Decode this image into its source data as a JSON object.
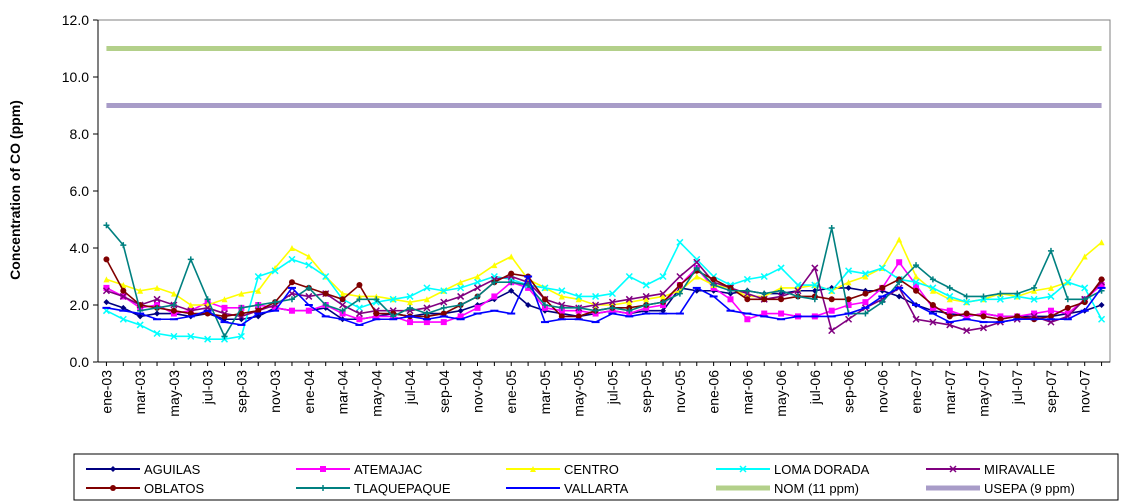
{
  "chart_data": {
    "type": "line",
    "title": "",
    "xlabel": "",
    "ylabel": "Concentration of CO (ppm)",
    "ylim": [
      0,
      12
    ],
    "yticks": [
      "0.0",
      "2.0",
      "4.0",
      "6.0",
      "8.0",
      "10.0",
      "12.0"
    ],
    "grid": false,
    "legend_position": "bottom",
    "x": [
      "ene-03",
      "feb-03",
      "mar-03",
      "abr-03",
      "may-03",
      "jun-03",
      "jul-03",
      "ago-03",
      "sep-03",
      "oct-03",
      "nov-03",
      "dic-03",
      "ene-04",
      "feb-04",
      "mar-04",
      "abr-04",
      "may-04",
      "jun-04",
      "jul-04",
      "ago-04",
      "sep-04",
      "oct-04",
      "nov-04",
      "dic-04",
      "ene-05",
      "feb-05",
      "mar-05",
      "abr-05",
      "may-05",
      "jun-05",
      "jul-05",
      "ago-05",
      "sep-05",
      "oct-05",
      "nov-05",
      "dic-05",
      "ene-06",
      "feb-06",
      "mar-06",
      "abr-06",
      "may-06",
      "jun-06",
      "jul-06",
      "ago-06",
      "sep-06",
      "oct-06",
      "nov-06",
      "dic-06",
      "ene-07",
      "feb-07",
      "mar-07",
      "abr-07",
      "may-07",
      "jun-07",
      "jul-07",
      "ago-07",
      "sep-07",
      "oct-07",
      "nov-07",
      "dic-07"
    ],
    "xtick_labels": [
      "ene-03",
      "mar-03",
      "may-03",
      "jul-03",
      "sep-03",
      "nov-03",
      "ene-04",
      "mar-04",
      "may-04",
      "jul-04",
      "sep-04",
      "nov-04",
      "ene-05",
      "mar-05",
      "may-05",
      "jul-05",
      "sep-05",
      "nov-05",
      "ene-06",
      "mar-06",
      "may-06",
      "jul-06",
      "sep-06",
      "nov-06",
      "ene-07",
      "mar-07",
      "may-07",
      "jul-07",
      "sep-07",
      "nov-07"
    ],
    "series": [
      {
        "name": "AGUILAS",
        "color": "#000080",
        "marker": "diamond",
        "values": [
          2.1,
          1.9,
          1.6,
          1.7,
          1.7,
          1.6,
          1.7,
          1.5,
          1.5,
          1.6,
          1.9,
          1.8,
          1.8,
          1.9,
          1.5,
          1.5,
          1.6,
          1.7,
          1.6,
          1.7,
          1.7,
          1.8,
          2.0,
          2.2,
          2.5,
          2.0,
          1.8,
          1.7,
          1.6,
          1.7,
          1.8,
          1.7,
          1.8,
          1.8,
          2.6,
          2.5,
          2.5,
          2.4,
          2.5,
          2.4,
          2.4,
          2.5,
          2.5,
          2.6,
          2.6,
          2.5,
          2.5,
          2.3,
          2.0,
          1.8,
          1.7,
          1.6,
          1.7,
          1.6,
          1.6,
          1.6,
          1.6,
          1.7,
          1.8,
          2.0
        ]
      },
      {
        "name": "ATEMAJAC",
        "color": "#ff00ff",
        "marker": "square",
        "values": [
          2.6,
          2.3,
          1.9,
          2.0,
          1.7,
          1.8,
          2.1,
          1.9,
          1.9,
          2.0,
          1.9,
          1.8,
          1.8,
          2.0,
          1.7,
          1.5,
          1.6,
          1.6,
          1.4,
          1.4,
          1.4,
          1.6,
          1.9,
          2.3,
          2.8,
          2.6,
          1.9,
          1.8,
          1.8,
          1.7,
          1.8,
          1.7,
          1.9,
          2.0,
          2.7,
          3.3,
          2.6,
          2.2,
          1.5,
          1.7,
          1.7,
          1.6,
          1.6,
          1.8,
          2.0,
          2.1,
          2.6,
          3.5,
          2.7,
          1.9,
          1.8,
          1.6,
          1.7,
          1.6,
          1.6,
          1.7,
          1.8,
          1.7,
          2.2,
          2.7
        ]
      },
      {
        "name": "CENTRO",
        "color": "#ffff00",
        "marker": "triangle",
        "values": [
          2.9,
          2.7,
          2.5,
          2.6,
          2.4,
          2.0,
          2.0,
          2.2,
          2.4,
          2.5,
          3.3,
          4.0,
          3.7,
          3.0,
          2.4,
          2.3,
          2.3,
          2.2,
          2.1,
          2.2,
          2.5,
          2.8,
          3.0,
          3.4,
          3.7,
          2.9,
          2.6,
          2.3,
          2.2,
          2.0,
          2.0,
          2.1,
          2.2,
          2.3,
          2.5,
          3.0,
          2.7,
          2.6,
          2.3,
          2.3,
          2.6,
          2.6,
          2.7,
          2.5,
          2.8,
          3.0,
          3.3,
          4.3,
          3.0,
          2.5,
          2.2,
          2.1,
          2.2,
          2.4,
          2.3,
          2.5,
          2.6,
          2.8,
          3.7,
          4.2
        ]
      },
      {
        "name": "LOMA DORADA",
        "color": "#00ffff",
        "marker": "x",
        "values": [
          1.8,
          1.5,
          1.3,
          1.0,
          0.9,
          0.9,
          0.8,
          0.8,
          0.9,
          3.0,
          3.2,
          3.6,
          3.4,
          3.0,
          2.2,
          1.9,
          2.1,
          2.2,
          2.3,
          2.6,
          2.5,
          2.6,
          2.8,
          3.0,
          2.9,
          2.7,
          2.6,
          2.5,
          2.3,
          2.3,
          2.4,
          3.0,
          2.7,
          3.0,
          4.2,
          3.6,
          3.0,
          2.7,
          2.9,
          3.0,
          3.3,
          2.7,
          2.7,
          2.5,
          3.2,
          3.1,
          3.3,
          2.9,
          2.8,
          2.6,
          2.3,
          2.1,
          2.2,
          2.2,
          2.3,
          2.2,
          2.3,
          2.8,
          2.6,
          1.5
        ]
      },
      {
        "name": "MIRAVALLE",
        "color": "#800080",
        "marker": "x",
        "values": [
          2.5,
          2.3,
          2.0,
          2.2,
          2.0,
          1.8,
          1.9,
          1.7,
          1.6,
          1.8,
          2.0,
          2.4,
          2.3,
          2.4,
          2.0,
          1.7,
          1.8,
          1.8,
          1.8,
          1.9,
          2.1,
          2.3,
          2.6,
          2.9,
          3.0,
          2.8,
          2.2,
          2.0,
          1.9,
          2.0,
          2.1,
          2.2,
          2.3,
          2.4,
          3.0,
          3.5,
          2.8,
          2.6,
          2.4,
          2.2,
          2.3,
          2.5,
          3.3,
          1.1,
          1.5,
          1.9,
          2.2,
          2.6,
          1.5,
          1.4,
          1.3,
          1.1,
          1.2,
          1.4,
          1.5,
          1.6,
          1.4,
          1.6,
          2.2,
          2.8
        ]
      },
      {
        "name": "OBLATOS",
        "color": "#800000",
        "marker": "circle",
        "values": [
          3.6,
          2.5,
          2.0,
          1.9,
          1.8,
          1.7,
          1.7,
          1.6,
          1.7,
          1.8,
          2.1,
          2.8,
          2.6,
          2.4,
          2.2,
          2.7,
          1.7,
          1.7,
          1.6,
          1.6,
          1.7,
          2.0,
          2.3,
          2.8,
          3.1,
          3.0,
          2.2,
          1.6,
          1.6,
          1.8,
          1.9,
          1.9,
          2.0,
          2.1,
          2.7,
          3.2,
          2.9,
          2.6,
          2.2,
          2.2,
          2.2,
          2.3,
          2.3,
          2.2,
          2.2,
          2.4,
          2.6,
          2.9,
          2.5,
          2.0,
          1.6,
          1.7,
          1.6,
          1.5,
          1.6,
          1.5,
          1.6,
          1.9,
          2.1,
          2.9
        ]
      },
      {
        "name": "TLAQUEPAQUE",
        "color": "#008080",
        "marker": "plus",
        "values": [
          4.8,
          4.1,
          1.8,
          1.9,
          2.0,
          3.6,
          2.2,
          0.9,
          1.9,
          2.0,
          2.1,
          2.2,
          2.6,
          2.0,
          1.8,
          2.2,
          2.2,
          1.6,
          1.9,
          1.7,
          1.9,
          2.0,
          2.3,
          2.8,
          2.8,
          2.7,
          2.0,
          1.9,
          1.9,
          1.8,
          1.9,
          1.8,
          2.0,
          2.1,
          2.4,
          3.3,
          2.7,
          2.5,
          2.5,
          2.4,
          2.5,
          2.3,
          2.2,
          4.7,
          1.7,
          1.7,
          2.1,
          2.8,
          3.4,
          2.9,
          2.6,
          2.3,
          2.3,
          2.4,
          2.4,
          2.6,
          3.9,
          2.2,
          2.2,
          2.5
        ]
      },
      {
        "name": "VALLARTA",
        "color": "#0000ff",
        "marker": "dash",
        "values": [
          1.9,
          1.8,
          1.7,
          1.5,
          1.5,
          1.6,
          1.8,
          1.4,
          1.3,
          1.7,
          1.8,
          2.6,
          2.0,
          1.6,
          1.5,
          1.3,
          1.5,
          1.5,
          1.6,
          1.5,
          1.6,
          1.5,
          1.7,
          1.8,
          1.7,
          3.0,
          1.4,
          1.5,
          1.5,
          1.4,
          1.7,
          1.6,
          1.7,
          1.7,
          1.7,
          2.6,
          2.3,
          1.8,
          1.7,
          1.6,
          1.5,
          1.6,
          1.6,
          1.6,
          1.7,
          1.9,
          2.3,
          2.6,
          2.0,
          1.7,
          1.4,
          1.5,
          1.4,
          1.4,
          1.5,
          1.5,
          1.5,
          1.5,
          1.8,
          2.6
        ]
      },
      {
        "name": "NOM (11 ppm)",
        "color": "#b3d08a",
        "marker": "none",
        "constant": 11
      },
      {
        "name": "USEPA (9 ppm)",
        "color": "#a89cc8",
        "marker": "none",
        "constant": 9
      }
    ]
  }
}
